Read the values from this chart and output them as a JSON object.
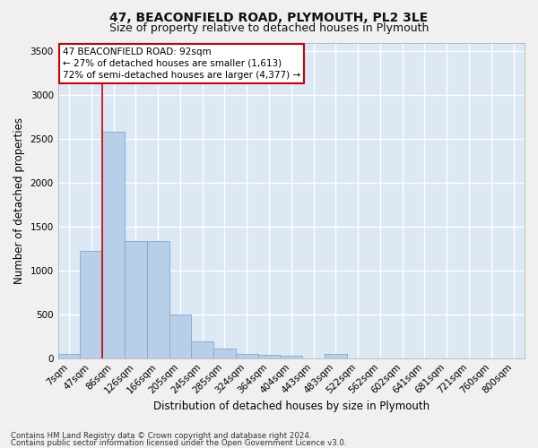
{
  "title": "47, BEACONFIELD ROAD, PLYMOUTH, PL2 3LE",
  "subtitle": "Size of property relative to detached houses in Plymouth",
  "xlabel": "Distribution of detached houses by size in Plymouth",
  "ylabel": "Number of detached properties",
  "categories": [
    "7sqm",
    "47sqm",
    "86sqm",
    "126sqm",
    "166sqm",
    "205sqm",
    "245sqm",
    "285sqm",
    "324sqm",
    "364sqm",
    "404sqm",
    "443sqm",
    "483sqm",
    "522sqm",
    "562sqm",
    "602sqm",
    "641sqm",
    "681sqm",
    "721sqm",
    "760sqm",
    "800sqm"
  ],
  "values": [
    50,
    1220,
    2580,
    1340,
    1340,
    500,
    190,
    110,
    50,
    40,
    30,
    0,
    45,
    0,
    0,
    0,
    0,
    0,
    0,
    0,
    0
  ],
  "bar_color": "#b8cfe8",
  "bar_edge_color": "#7aaad0",
  "vline_x": 1.5,
  "vline_color": "#cc0000",
  "annotation_text": "47 BEACONFIELD ROAD: 92sqm\n← 27% of detached houses are smaller (1,613)\n72% of semi-detached houses are larger (4,377) →",
  "annotation_box_color": "#ffffff",
  "annotation_box_edgecolor": "#cc0000",
  "ylim": [
    0,
    3600
  ],
  "yticks": [
    0,
    500,
    1000,
    1500,
    2000,
    2500,
    3000,
    3500
  ],
  "background_color": "#dde8f5",
  "grid_color": "#ffffff",
  "footer_line1": "Contains HM Land Registry data © Crown copyright and database right 2024.",
  "footer_line2": "Contains public sector information licensed under the Open Government Licence v3.0.",
  "title_fontsize": 10,
  "subtitle_fontsize": 9,
  "axis_label_fontsize": 8.5,
  "tick_fontsize": 7.5
}
